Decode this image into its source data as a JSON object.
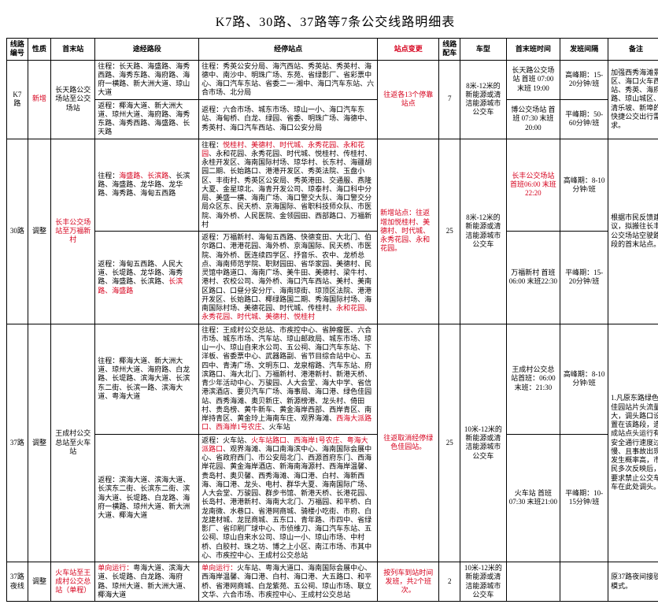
{
  "title": "K7路、30路、37路等7条公交线路明细表",
  "headers": {
    "id": "线路编号",
    "nature": "性质",
    "terminal": "首末站",
    "route": "途经路段",
    "stops": "经停站点",
    "change": "站点变更",
    "fleet": "线路配车",
    "model": "车型",
    "time": "首末班时间",
    "interval": "发班间隔",
    "remark": "备注"
  },
  "rows": {
    "k7": {
      "id": "K7路",
      "nature": "新增",
      "terminal": "长天路公交场站至公交场站",
      "route_fwd": "往程：长天路、海盛路、海秀西路、海秀东路、海府路、海府一横路、新大洲大道、琼山大道",
      "route_back": "返程：椰海大道、新大洲大道、琼州大道、海府路、海秀东路、海秀西路、海盛路、长天路",
      "stops_fwd": "往程：秀英公安分局、海汽西站、秀英站、秀英村、海德中、南沙中、明珠广场、东苑、省绿影厂、省彩票中心、海口汽车东站、省委二一·湘中、海口汽车东站、六合市场、北分局",
      "stops_back": "返程：六合市场、城东市场、琼山一小、海口汽车东站、海甸桥、白龙、绿园、省委、明珠广场、海德中、秀英村、海口汽车西站、海口公安分局",
      "change": "往返各13个停靠站点",
      "fleet": "7",
      "model": "8米-12米的新能源或清洁能源城市公交车",
      "time_a": "长天路公交场站\n首班 07:00\n末班 19:00",
      "time_b": "博公交场站\n首班 07:30\n末班 20:00",
      "interval_peak": "高峰期：15-20分钟/班",
      "interval_off": "平峰期：50-60分钟/班",
      "remark": "加强西秀海滩景区、海口火车西站、秀英、海府路、琼山城区、清乐坡、新埠的快捷公交出行需求。"
    },
    "r30": {
      "id": "30路",
      "nature": "调整",
      "terminal": "长丰公交场站至万福新村",
      "route_fwd_pre": "往程：",
      "route_fwd_mid": "海盛路、长滨路",
      "route_fwd_post": "、长滨路、海盛路、龙华路、龙华路、海秀路、海甸五西路",
      "route_back_pre": "返程：海甸五西路、人民大道、长堤路、龙华路、海秀路、海盛路、长滨路、",
      "route_back_mid": "长滨路、海盛路",
      "stops_fwd_pre": "往程：",
      "stops_fwd_mid": "悦桂村、美德村、时代城、永秀花园、永和花园",
      "stops_fwd_post": "、永和花园、永秀花园、时代城、悦桂村、传桂村、永桂开发区、海南国际村场、琼华村、长东村、海疆胡园二期、长始路口、港港开发区、秀英法院、玉盘小区、丰街村、秀英区公安局、秀英港田、交通服、燕隆大夏、金星琼北、海青开发公司、琼泰村、海口科中分局、美盛一横、海南广场、海口警交大队、海口警交分局众区东、民天桥、京海国际、省职科技师众队、市医院、海外桥、人民医院、金领园田、西部路口、万福新村",
      "stops_back_pre": "返程：万福新村、海甸五西路、快德变田、大北门、伯尔路口、港港花园、海外桥、京海国际、民天桥、市医院、海外桥、医连续四学区、抒音乐、农中、龙桥总点、海南师范学院、职财园田、省华家园、美德村、民灵馆中路道口、海南广场、美牛田、美德村、梁牛村、港村、农校公司、海外桥、海口汽车西站、美村、美南区路口、口昼分安分厅、海南琼街、琼顶区法院、港港开发区、长始路口、椰绿路国二期、秀海国际村场、海南国际村场、美德花园、时代城、传桂村、",
      "stops_back_mid": "永和花园、永秀花园、时代城、美德村、悦桂村",
      "change_pre": "新增站点：往返增加悦桂村、",
      "change_mid": "美德村、时代城、永秀花园、永和花园。",
      "fleet": "25",
      "model": "8米-12米的新能源或清洁能源城市公交车",
      "time_a": "长丰公交场站\n首班06:00\n末班22:20",
      "time_b": "万福新村\n首班06:00\n末班22:30",
      "interval_peak": "高峰期：8-10分钟/班",
      "interval_off": "平峰期：15-20分钟/班",
      "remark": "根据市民反馈建议，拟搬往长丰公交场站空驶路段的首末站点。"
    },
    "r37": {
      "id": "37路",
      "nature": "调整",
      "terminal": "王成村公交总站至火车站",
      "route_fwd": "往程：椰海大道、新大洲大道、琼州大道、海府路、白龙路、长堤路、滨海大道、长滨东二街、长滨一路、滨海大道、粤海大道",
      "route_back": "返程：滨海大道、滨海大道、长滨东二街、长滨东二街、滨海大道、长堤路、白龙路、海府一横路、琼州大道、新大洲大道、椰海大道",
      "stops_fwd_pre": "往程：王成村公交总站、市疾控中心、省肿瘤医、六合市场、城东市场、汽车站、琼山邮政局、城东市场、琼山一小、琼山自来水公司、五公祠、海口汽车东站、下洋板、省委票中心、武器路副、省节目综合站中心、五四中、青涛广场、文明东口、龙泉榕路、汽车东站、府滨路口、海大北门、万福新村、港港新村、新港天桥、青少年活动中心、万骏园、人大会堂、海大中学、省信港滨酒店、要贝汽车广场、海事局、海口港、绿色佳园站、西秀海滩、奥贝新庄、新源榜港、龙头村、倚田村、贵岛榜、黄牛新车、黄金海岸西部、西岸青区、南岸持青区、黄金玲上海南车庄、观界海滩、",
      "stops_fwd_mid": "西海大派路口、西海岸1号农庄",
      "stops_fwd_post": "、火车站",
      "stops_back_pre": "返程：火车站、",
      "stops_back_mid": "火车站路口、西海岸1号农庄、粤海大派路口",
      "stops_back_post": "、观界海滩、海口南海滨中心、海南国际会展中心、省政府西门、市公安局北门、西源首府东门、西海岸花园、黄金海岸酒店、新海南海源村、西海岸温馨、贵岛村、奥贝馨、西秀海滩、海口港、白村、海新西海、海口港、龙头、电村、群华大夏、海南国际广场、人大会堂、万骏园、群步书馆、新港天桥、长港花园、长岛村、港港新村、海南大北门、万福园、和平桥、白龙南微、水巷口、省港网商城、骑楼小吃街、市府、白龙建材城、龙昆商城、五东口、青年路、市四中、省绿影厂、省印刷厂球中心、市侦维刀、海口汽车东站、五公祠、琼山自来水公司、琼山一小、琼山市场、中村桥、白胶村、珠之坊、博之上小区、南江市场、市其中心、市疾控中心、王成村公交总站",
      "change": "往返取消经停绿色佳园站。",
      "fleet": "25",
      "model": "10米-12米的新能源或清洁能源城市公交车",
      "time_a": "王成村公交总站首班：06:00\n末班：21:30",
      "time_b": "火车站\n首班07:30\n末班21:00",
      "interval_peak": "高峰期：8-10分钟/班",
      "interval_off": "平峰期：10-15分钟/班",
      "remark": "1.凡原东路绿色佳园站片头流量大，调头路口设置在该路段，造成站点头运行有安全通行速度过慢、且事故出现发生概率高，市民多次反映后，要求禁止公交车车在此处调头。"
    },
    "r37n": {
      "id": "37路夜线",
      "nature": "调整",
      "terminal": "火车站至王成村公交总站（单程）",
      "route_pre": "单向运行：",
      "route_post": "粤海大道、滨海大道、长堤路、白龙路、海府路、琼州大道、新大洲大道、椰海大道",
      "stops_pre": "单向运行：",
      "stops_post": "火车站、粤海大道口、海南国际会展中心、西海岸温馨、海口港、白村、海口港、大五路口、和平桥、省港网商城、白龙紫苑、五公祠、琼山市场、联立文华、六合市场、市疾控中心、王成村公交总站",
      "change": "按列车到站时间发班，共2个班次。",
      "fleet": "2",
      "model": "10米-12米的新能源或清洁能源城市公交车",
      "time": "",
      "interval": "",
      "remark": "原37路夜间接驳模式。"
    }
  }
}
